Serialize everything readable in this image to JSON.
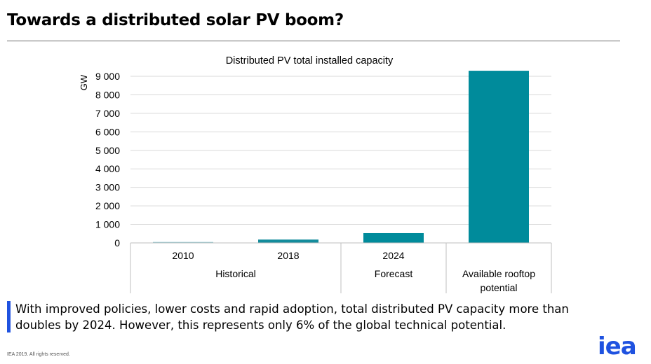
{
  "slide": {
    "title": "Towards a distributed solar PV boom?",
    "callout": "With improved policies, lower costs and rapid adoption, total distributed PV capacity more than doubles by 2024. However, this represents only 6% of the global technical potential.",
    "footer": "IEA 2019. All rights reserved.",
    "logo_text": "iea",
    "accent_color": "#1f52e0"
  },
  "chart_data": {
    "type": "bar",
    "title": "Distributed PV total installed capacity",
    "ylabel": "GW",
    "ylim": [
      0,
      9000
    ],
    "yticks": [
      0,
      1000,
      2000,
      3000,
      4000,
      5000,
      6000,
      7000,
      8000,
      9000
    ],
    "ytick_labels": [
      "0",
      "1 000",
      "2 000",
      "3 000",
      "4 000",
      "5 000",
      "6 000",
      "7 000",
      "8 000",
      "9 000"
    ],
    "grid": true,
    "categories": [
      "2010",
      "2018",
      "2024",
      "Available rooftop potential"
    ],
    "values": [
      50,
      180,
      530,
      9300
    ],
    "bar_colors": [
      "#8cc7cf",
      "#148c9c",
      "#008b9b",
      "#008b9b"
    ],
    "groups": [
      {
        "label": "Historical",
        "categories": [
          "2010",
          "2018"
        ]
      },
      {
        "label": "Forecast",
        "categories": [
          "2024"
        ]
      },
      {
        "label": "Available rooftop potential",
        "categories": [
          "Available rooftop potential"
        ]
      }
    ]
  }
}
